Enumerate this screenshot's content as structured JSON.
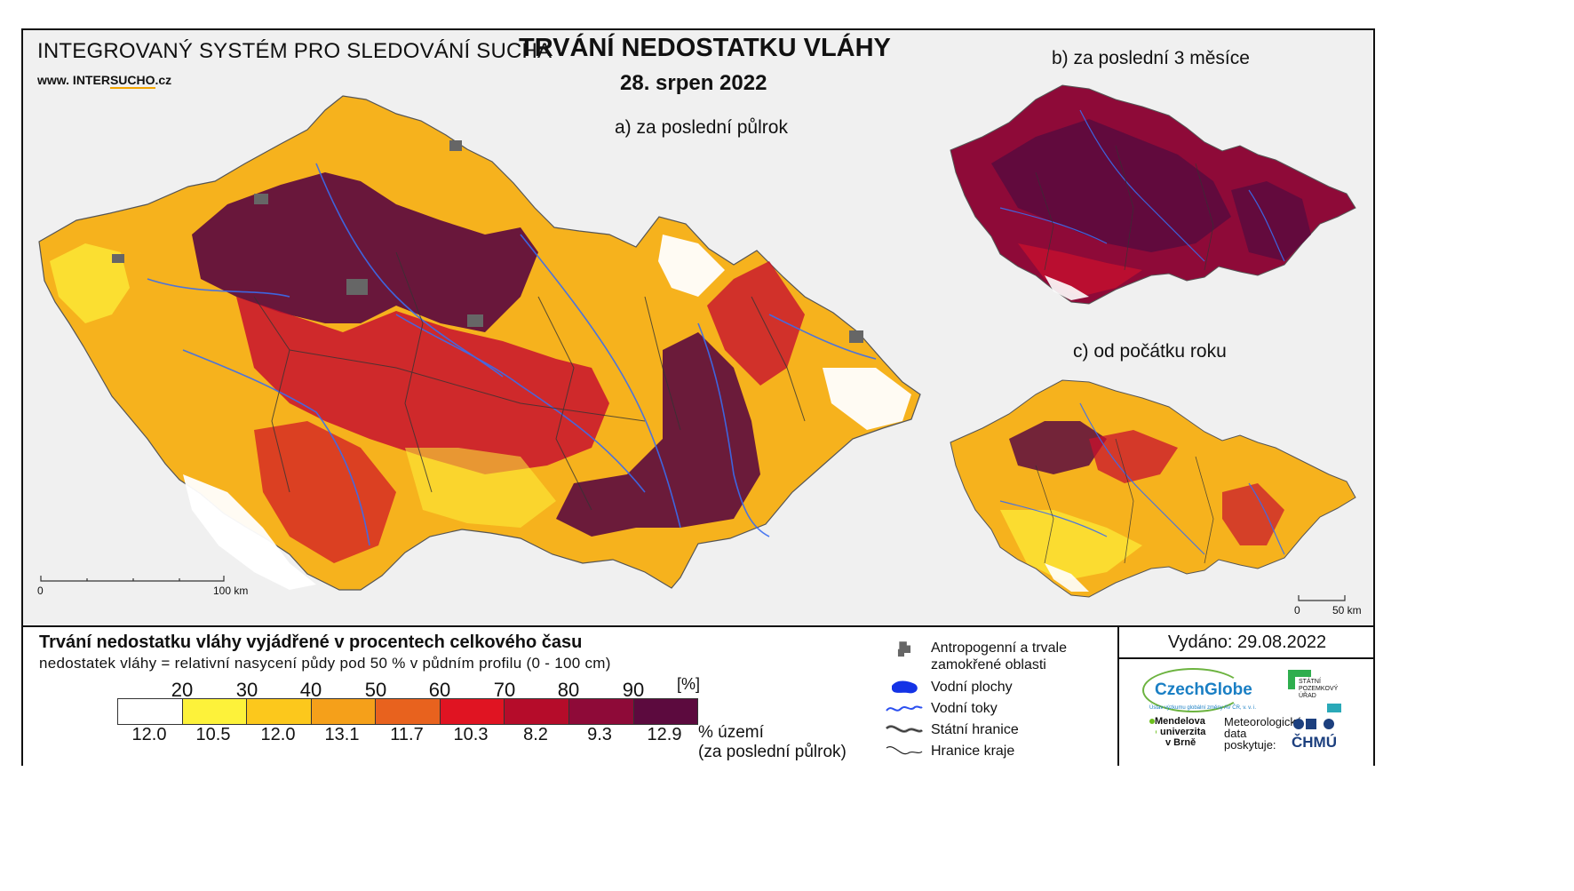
{
  "header": {
    "system_title": "INTEGROVANÝ SYSTÉM PRO SLEDOVÁNÍ SUCHA",
    "website_prefix": "www. INTER",
    "website_highlight": "SUCHO",
    "website_suffix": ".cz",
    "main_title": "TRVÁNÍ NEDOSTATKU VLÁHY",
    "date": "28. srpen 2022"
  },
  "maps": {
    "a_label": "a) za poslední půlrok",
    "b_label": "b) za poslední 3 měsíce",
    "c_label": "c) od počátku roku",
    "scale_main_start": "0",
    "scale_main_end": "100 km",
    "scale_small_start": "0",
    "scale_small_end": "50 km"
  },
  "legend": {
    "title": "Trvání nedostatku vláhy vyjádřené v procentech celkového času",
    "subtitle": "nedostatek vláhy = relativní nasycení půdy pod 50 % v půdním profilu (0 - 100 cm)",
    "unit": "[%]",
    "thresholds": [
      "20",
      "30",
      "40",
      "50",
      "60",
      "70",
      "80",
      "90"
    ],
    "class_colors": [
      "#ffffff",
      "#fdf23a",
      "#fcc81c",
      "#f5a01a",
      "#e8621e",
      "#e01422",
      "#b50c2a",
      "#8e0a38",
      "#5c0a3e"
    ],
    "percent_territory": [
      "12.0",
      "10.5",
      "12.0",
      "13.1",
      "11.7",
      "10.3",
      "8.2",
      "9.3",
      "12.9"
    ],
    "percent_label_line1": "% území",
    "percent_label_line2": "(za poslední půlrok)"
  },
  "key": {
    "urban": "Antropogenní a trvale zamokřené oblasti",
    "water_bodies": "Vodní plochy",
    "rivers": "Vodní toky",
    "state_border": "Státní hranice",
    "region_border": "Hranice kraje"
  },
  "issued": "Vydáno: 29.08.2022",
  "logos": {
    "czechglobe": "CzechGlobe",
    "czechglobe_sub": "Ústav výzkumu globální změny AV ČR, v. v. i.",
    "spu_line1": "STÁTNÍ",
    "spu_line2": "POZEMKOVÝ",
    "spu_line3": "ÚŘAD",
    "mendel_line1": "Mendelova",
    "mendel_line2": "univerzita",
    "mendel_line3": "v Brně",
    "meteo_line1": "Meteorologická",
    "meteo_line2": "data",
    "meteo_line3": "poskytuje:",
    "chmu": "ČHMÚ"
  }
}
